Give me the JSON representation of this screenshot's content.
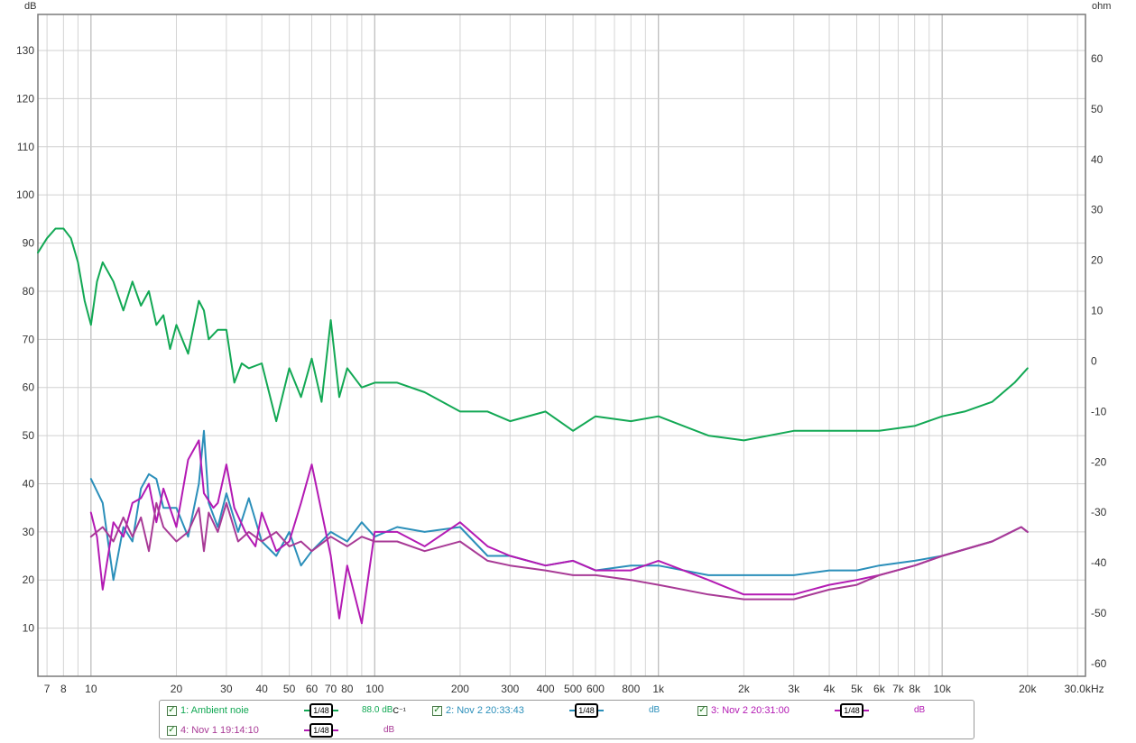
{
  "chart_data": {
    "type": "line",
    "xscale": "log",
    "xlim": [
      6.5,
      32000
    ],
    "ylim": [
      0,
      137.5
    ],
    "y2lim": [
      -62.5,
      68.75
    ],
    "grid": true,
    "ylabel": "dB",
    "y2label": "ohm",
    "xunit": "Hz",
    "xticks": [
      {
        "v": 7,
        "label": "7"
      },
      {
        "v": 8,
        "label": "8"
      },
      {
        "v": 10,
        "label": "10"
      },
      {
        "v": 20,
        "label": "20"
      },
      {
        "v": 30,
        "label": "30"
      },
      {
        "v": 40,
        "label": "40"
      },
      {
        "v": 50,
        "label": "50"
      },
      {
        "v": 60,
        "label": "60"
      },
      {
        "v": 70,
        "label": "70"
      },
      {
        "v": 80,
        "label": "80"
      },
      {
        "v": 100,
        "label": "100"
      },
      {
        "v": 200,
        "label": "200"
      },
      {
        "v": 300,
        "label": "300"
      },
      {
        "v": 400,
        "label": "400"
      },
      {
        "v": 500,
        "label": "500"
      },
      {
        "v": 600,
        "label": "600"
      },
      {
        "v": 800,
        "label": "800"
      },
      {
        "v": 1000,
        "label": "1k"
      },
      {
        "v": 2000,
        "label": "2k"
      },
      {
        "v": 3000,
        "label": "3k"
      },
      {
        "v": 4000,
        "label": "4k"
      },
      {
        "v": 5000,
        "label": "5k"
      },
      {
        "v": 6000,
        "label": "6k"
      },
      {
        "v": 7000,
        "label": "7k"
      },
      {
        "v": 8000,
        "label": "8k"
      },
      {
        "v": 10000,
        "label": "10k"
      },
      {
        "v": 20000,
        "label": "20k"
      },
      {
        "v": 30000,
        "label": "30.0k"
      }
    ],
    "yticks": [
      {
        "v": 10,
        "label": "10"
      },
      {
        "v": 20,
        "label": "20"
      },
      {
        "v": 30,
        "label": "30"
      },
      {
        "v": 40,
        "label": "40"
      },
      {
        "v": 50,
        "label": "50"
      },
      {
        "v": 60,
        "label": "60"
      },
      {
        "v": 70,
        "label": "70"
      },
      {
        "v": 80,
        "label": "80"
      },
      {
        "v": 90,
        "label": "90"
      },
      {
        "v": 100,
        "label": "100"
      },
      {
        "v": 110,
        "label": "110"
      },
      {
        "v": 120,
        "label": "120"
      },
      {
        "v": 130,
        "label": "130"
      }
    ],
    "y2ticks": [
      {
        "v": -60,
        "label": "-60"
      },
      {
        "v": -50,
        "label": "-50"
      },
      {
        "v": -40,
        "label": "-40"
      },
      {
        "v": -30,
        "label": "-30"
      },
      {
        "v": -20,
        "label": "-20"
      },
      {
        "v": -10,
        "label": "-10"
      },
      {
        "v": 0,
        "label": "0"
      },
      {
        "v": 10,
        "label": "10"
      },
      {
        "v": 20,
        "label": "20"
      },
      {
        "v": 30,
        "label": "30"
      },
      {
        "v": 40,
        "label": "40"
      },
      {
        "v": 50,
        "label": "50"
      },
      {
        "v": 60,
        "label": "60"
      }
    ],
    "series": [
      {
        "name": "1: Ambient noie",
        "color": "#12a854",
        "x": [
          6.5,
          7,
          7.5,
          8,
          8.5,
          9,
          9.5,
          10,
          10.5,
          11,
          12,
          13,
          14,
          15,
          16,
          17,
          18,
          19,
          20,
          22,
          24,
          25,
          26,
          28,
          30,
          32,
          34,
          36,
          40,
          45,
          50,
          55,
          60,
          65,
          70,
          75,
          80,
          90,
          100,
          120,
          150,
          200,
          250,
          300,
          400,
          500,
          600,
          800,
          1000,
          1500,
          2000,
          3000,
          4000,
          5000,
          6000,
          8000,
          10000,
          12000,
          15000,
          18000,
          20000
        ],
        "y": [
          88,
          91,
          93,
          93,
          91,
          86,
          78,
          73,
          82,
          86,
          82,
          76,
          82,
          77,
          80,
          73,
          75,
          68,
          73,
          67,
          78,
          76,
          70,
          72,
          72,
          61,
          65,
          64,
          65,
          53,
          64,
          58,
          66,
          57,
          74,
          58,
          64,
          60,
          61,
          61,
          59,
          55,
          55,
          53,
          55,
          51,
          54,
          53,
          54,
          50,
          49,
          51,
          51,
          51,
          51,
          52,
          54,
          55,
          57,
          61,
          64
        ]
      },
      {
        "name": "2: Nov 2 20:33:43",
        "color": "#2b8fba",
        "x": [
          10,
          11,
          12,
          13,
          14,
          15,
          16,
          17,
          18,
          20,
          22,
          24,
          25,
          26,
          28,
          30,
          33,
          36,
          40,
          45,
          50,
          55,
          60,
          70,
          80,
          90,
          100,
          120,
          150,
          200,
          250,
          300,
          400,
          500,
          600,
          800,
          1000,
          1500,
          2000,
          3000,
          4000,
          5000,
          6000,
          8000,
          10000,
          15000,
          19000,
          20000
        ],
        "y": [
          41,
          36,
          20,
          31,
          28,
          39,
          42,
          41,
          35,
          35,
          29,
          40,
          51,
          36,
          31,
          38,
          30,
          37,
          28,
          25,
          30,
          23,
          26,
          30,
          28,
          32,
          29,
          31,
          30,
          31,
          25,
          25,
          23,
          24,
          22,
          23,
          23,
          21,
          21,
          21,
          22,
          22,
          23,
          24,
          25,
          28,
          31,
          30
        ]
      },
      {
        "name": "3: Nov 2 20:31:00",
        "color": "#b31ab3",
        "x": [
          10,
          10.5,
          11,
          12,
          13,
          14,
          15,
          16,
          17,
          18,
          20,
          22,
          24,
          25,
          27,
          28,
          30,
          32,
          35,
          38,
          40,
          45,
          50,
          55,
          60,
          70,
          75,
          80,
          90,
          100,
          120,
          150,
          200,
          250,
          300,
          400,
          500,
          600,
          800,
          1000,
          1500,
          2000,
          3000,
          4000,
          5000,
          6000,
          8000,
          10000,
          15000,
          19000,
          20000
        ],
        "y": [
          34,
          29,
          18,
          32,
          29,
          36,
          37,
          40,
          32,
          39,
          31,
          45,
          49,
          38,
          35,
          36,
          44,
          35,
          30,
          27,
          34,
          26,
          28,
          36,
          44,
          25,
          12,
          23,
          11,
          30,
          30,
          27,
          32,
          27,
          25,
          23,
          24,
          22,
          22,
          24,
          20,
          17,
          17,
          19,
          20,
          21,
          23,
          25,
          28,
          31,
          30
        ]
      },
      {
        "name": "4: Nov 1 19:14:10",
        "color": "#a83a96",
        "x": [
          10,
          11,
          12,
          13,
          14,
          15,
          16,
          17,
          18,
          20,
          22,
          24,
          25,
          26,
          28,
          30,
          33,
          36,
          40,
          45,
          50,
          55,
          60,
          70,
          80,
          90,
          100,
          120,
          150,
          200,
          250,
          300,
          400,
          500,
          600,
          800,
          1000,
          1500,
          2000,
          3000,
          4000,
          5000,
          6000,
          8000,
          10000,
          15000,
          19000,
          20000
        ],
        "y": [
          29,
          31,
          28,
          33,
          29,
          33,
          26,
          36,
          31,
          28,
          30,
          35,
          26,
          34,
          30,
          36,
          28,
          30,
          28,
          30,
          27,
          28,
          26,
          29,
          27,
          29,
          28,
          28,
          26,
          28,
          24,
          23,
          22,
          21,
          21,
          20,
          19,
          17,
          16,
          16,
          18,
          19,
          21,
          23,
          25,
          28,
          31,
          30
        ]
      }
    ]
  },
  "legend": [
    {
      "label": "1: Ambient noie",
      "color": "#12a854",
      "smoothing": "1/48",
      "value": "88.0 dB",
      "suffix": "C⁻¹"
    },
    {
      "label": "2: Nov 2 20:33:43",
      "color": "#2b8fba",
      "smoothing": "1/48",
      "value": "dB",
      "suffix": ""
    },
    {
      "label": "3: Nov 2 20:31:00",
      "color": "#b31ab3",
      "smoothing": "1/48",
      "value": "dB",
      "suffix": ""
    },
    {
      "label": "4: Nov 1 19:14:10",
      "color": "#a83a96",
      "smoothing": "1/48",
      "value": "dB",
      "suffix": ""
    }
  ]
}
